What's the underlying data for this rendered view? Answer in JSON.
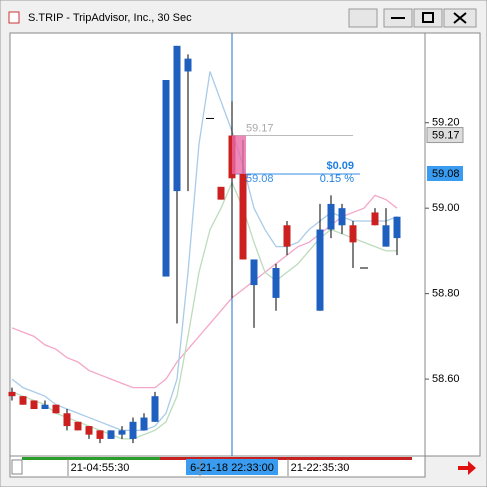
{
  "window_title": "S.TRIP - TripAdvisor, Inc., 30 Sec",
  "chart_data": {
    "type": "candlestick",
    "categories": [
      null,
      null,
      null,
      null,
      null,
      null,
      null,
      null,
      "21-04:55:30",
      null,
      null,
      null,
      null,
      null,
      null,
      null,
      null,
      null,
      null,
      null,
      "6-21-18 22:33:00",
      null,
      null,
      null,
      null,
      null,
      null,
      null,
      "21-22:35:30",
      null,
      null,
      null,
      null,
      null,
      null,
      null
    ],
    "open": [
      58.57,
      58.56,
      58.55,
      58.53,
      58.54,
      58.52,
      58.5,
      58.49,
      58.48,
      58.46,
      58.47,
      58.46,
      58.48,
      58.5,
      58.84,
      59.04,
      59.32,
      null,
      59.21,
      59.05,
      59.17,
      59.08,
      58.82,
      null,
      58.79,
      58.96,
      null,
      null,
      58.76,
      58.95,
      58.96,
      58.96,
      58.86,
      58.99,
      58.91,
      58.93
    ],
    "high": [
      58.58,
      58.56,
      58.55,
      58.55,
      58.54,
      58.53,
      58.5,
      58.49,
      58.48,
      58.48,
      58.49,
      58.51,
      58.52,
      58.57,
      59.3,
      59.38,
      59.36,
      null,
      59.21,
      59.05,
      59.25,
      59.16,
      58.88,
      null,
      58.87,
      58.97,
      null,
      null,
      59.01,
      59.03,
      59.01,
      58.97,
      58.86,
      59.0,
      59.0,
      58.98
    ],
    "low": [
      58.55,
      58.54,
      58.53,
      58.53,
      58.52,
      58.48,
      58.48,
      58.46,
      58.45,
      58.46,
      58.46,
      58.45,
      58.48,
      58.5,
      58.84,
      58.73,
      59.04,
      null,
      59.21,
      59.02,
      58.79,
      58.88,
      58.72,
      null,
      58.76,
      58.89,
      null,
      null,
      58.76,
      58.93,
      58.94,
      58.86,
      58.86,
      58.96,
      58.91,
      58.89
    ],
    "close": [
      58.56,
      58.54,
      58.53,
      58.54,
      58.52,
      58.49,
      58.48,
      58.47,
      58.46,
      58.48,
      58.48,
      58.5,
      58.51,
      58.56,
      59.3,
      59.38,
      59.35,
      null,
      59.21,
      59.02,
      59.07,
      58.88,
      58.88,
      null,
      58.86,
      58.91,
      null,
      null,
      58.95,
      59.01,
      59.0,
      58.92,
      58.86,
      58.96,
      58.96,
      58.98
    ],
    "up_color": "#1f5fbf",
    "down_color": "#cc1f1f",
    "indicators": [
      {
        "color": "#f4a6c8",
        "values": [
          58.72,
          58.71,
          58.7,
          58.68,
          58.67,
          58.65,
          58.64,
          58.62,
          58.61,
          58.6,
          58.59,
          58.58,
          58.58,
          58.58,
          58.6,
          58.64,
          58.67,
          58.7,
          58.73,
          58.76,
          58.79,
          58.81,
          58.83,
          58.85,
          58.87,
          58.89,
          58.91,
          58.92,
          58.94,
          58.96,
          58.98,
          58.99,
          59.0,
          59.03,
          59.02,
          59.0
        ]
      },
      {
        "color": "#a9cbe8",
        "values": [
          58.6,
          58.58,
          58.57,
          58.56,
          58.54,
          58.53,
          58.52,
          58.51,
          58.5,
          58.49,
          58.48,
          58.48,
          58.48,
          58.49,
          58.52,
          58.6,
          58.85,
          59.15,
          59.32,
          59.25,
          59.18,
          59.1,
          59.0,
          58.95,
          58.91,
          58.91,
          58.92,
          58.95,
          58.97,
          58.99,
          58.98,
          58.97,
          58.97,
          58.97,
          58.97,
          58.98
        ]
      },
      {
        "color": "#bcdcbc",
        "values": [
          58.57,
          58.56,
          58.55,
          58.54,
          58.52,
          58.51,
          58.5,
          58.49,
          58.48,
          58.47,
          58.46,
          58.46,
          58.47,
          58.48,
          58.5,
          58.56,
          58.7,
          58.85,
          58.95,
          59.0,
          59.06,
          59.0,
          58.92,
          58.85,
          58.83,
          58.85,
          58.87,
          58.9,
          58.93,
          58.95,
          58.94,
          58.93,
          58.92,
          58.91,
          58.9,
          58.9
        ]
      }
    ],
    "ylim": [
      58.42,
      59.41
    ],
    "yticks": [
      {
        "value": 59.2,
        "label": "59.20"
      },
      {
        "value": 59.0,
        "label": "59.00"
      },
      {
        "value": 58.8,
        "label": "58.80"
      },
      {
        "value": 58.6,
        "label": "58.60"
      }
    ],
    "cursor_index": 20,
    "measure": {
      "high": 59.17,
      "low": 59.08,
      "change": {
        "value": 0.09,
        "label": "$0.09"
      },
      "percent": {
        "value": 0.15,
        "label": "0.15 %"
      }
    }
  }
}
